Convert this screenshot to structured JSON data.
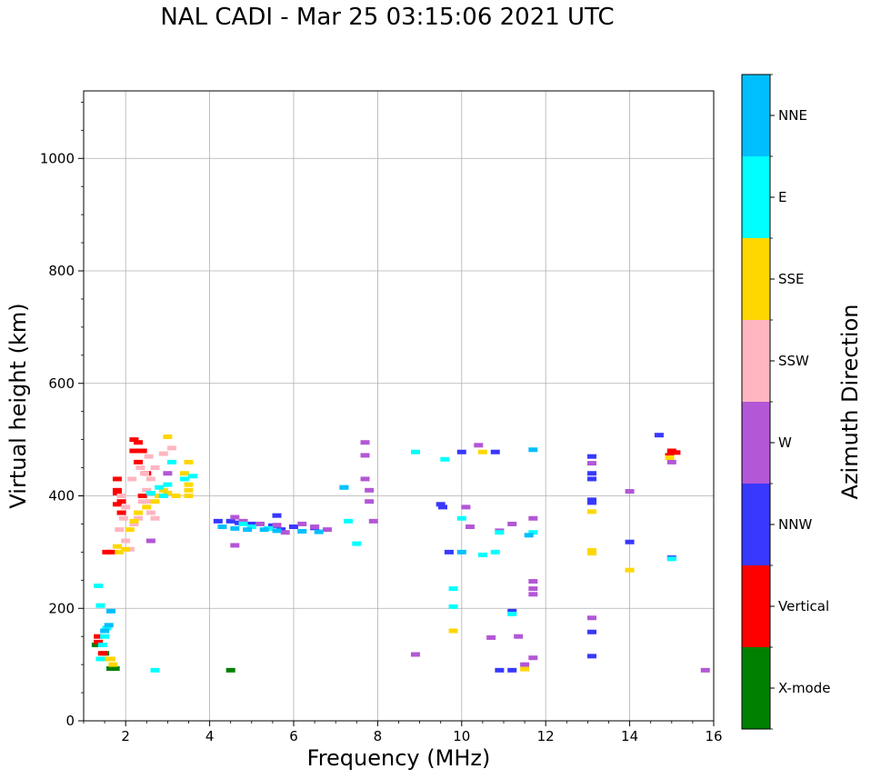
{
  "chart_data": {
    "type": "scatter",
    "title": "NAL CADI - Mar 25 03:15:06 2021 UTC",
    "xlabel": "Frequency (MHz)",
    "ylabel": "Virtual height (km)",
    "xlim": [
      1,
      16
    ],
    "ylim": [
      0,
      1120
    ],
    "xticks": [
      2,
      4,
      6,
      8,
      10,
      12,
      14,
      16
    ],
    "yticks": [
      0,
      200,
      400,
      600,
      800,
      1000
    ],
    "grid": true,
    "colorbar": {
      "label": "Azimuth Direction",
      "categories": [
        "X-mode",
        "Vertical",
        "NNW",
        "W",
        "SSW",
        "SSE",
        "E",
        "NNE"
      ],
      "colors": {
        "X-mode": "#008000",
        "Vertical": "#ff0000",
        "NNW": "#3838ff",
        "W": "#b357d6",
        "SSW": "#ffb6c1",
        "SSE": "#ffd700",
        "E": "#00ffff",
        "NNE": "#00bfff"
      }
    },
    "series": [
      {
        "name": "X-mode",
        "points": [
          [
            1.65,
            93
          ],
          [
            1.75,
            93
          ],
          [
            4.5,
            90
          ],
          [
            1.3,
            135
          ],
          [
            1.5,
            120
          ]
        ]
      },
      {
        "name": "Vertical",
        "points": [
          [
            1.35,
            140
          ],
          [
            1.35,
            150
          ],
          [
            1.45,
            120
          ],
          [
            1.55,
            300
          ],
          [
            1.65,
            300
          ],
          [
            1.8,
            430
          ],
          [
            1.8,
            410
          ],
          [
            1.8,
            405
          ],
          [
            1.8,
            385
          ],
          [
            1.9,
            390
          ],
          [
            1.9,
            370
          ],
          [
            2.2,
            500
          ],
          [
            2.2,
            480
          ],
          [
            2.3,
            495
          ],
          [
            2.3,
            460
          ],
          [
            2.4,
            480
          ],
          [
            2.5,
            440
          ],
          [
            2.4,
            400
          ],
          [
            15,
            480
          ],
          [
            15.1,
            477
          ],
          [
            14.95,
            472
          ]
        ]
      },
      {
        "name": "NNW",
        "points": [
          [
            4.2,
            355
          ],
          [
            4.5,
            355
          ],
          [
            4.7,
            352
          ],
          [
            5.0,
            350
          ],
          [
            5.5,
            347
          ],
          [
            6.0,
            345
          ],
          [
            6.5,
            343
          ],
          [
            5.7,
            340
          ],
          [
            5.6,
            365
          ],
          [
            9.5,
            385
          ],
          [
            9.55,
            380
          ],
          [
            9.7,
            300
          ],
          [
            10.0,
            478
          ],
          [
            10.8,
            478
          ],
          [
            11.2,
            195
          ],
          [
            10.9,
            90
          ],
          [
            11.2,
            90
          ],
          [
            13.1,
            470
          ],
          [
            13.1,
            440
          ],
          [
            13.1,
            430
          ],
          [
            13.1,
            393
          ],
          [
            13.1,
            388
          ],
          [
            13.1,
            158
          ],
          [
            13.1,
            115
          ],
          [
            14.0,
            318
          ],
          [
            14.7,
            508
          ],
          [
            15.0,
            290
          ]
        ]
      },
      {
        "name": "W",
        "points": [
          [
            4.6,
            362
          ],
          [
            4.8,
            355
          ],
          [
            5.2,
            350
          ],
          [
            5.6,
            348
          ],
          [
            6.2,
            350
          ],
          [
            6.5,
            345
          ],
          [
            6.8,
            340
          ],
          [
            5.8,
            335
          ],
          [
            4.6,
            312
          ],
          [
            7.7,
            495
          ],
          [
            7.7,
            472
          ],
          [
            7.7,
            430
          ],
          [
            7.8,
            410
          ],
          [
            7.8,
            390
          ],
          [
            7.9,
            355
          ],
          [
            8.9,
            118
          ],
          [
            10.1,
            380
          ],
          [
            10.2,
            345
          ],
          [
            10.4,
            490
          ],
          [
            10.7,
            148
          ],
          [
            10.9,
            338
          ],
          [
            11.2,
            350
          ],
          [
            11.35,
            150
          ],
          [
            11.7,
            360
          ],
          [
            11.7,
            248
          ],
          [
            11.7,
            235
          ],
          [
            11.7,
            225
          ],
          [
            11.7,
            112
          ],
          [
            11.5,
            100
          ],
          [
            13.1,
            458
          ],
          [
            13.1,
            183
          ],
          [
            14.0,
            408
          ],
          [
            15.0,
            460
          ],
          [
            15.8,
            90
          ],
          [
            2.6,
            320
          ],
          [
            3.0,
            440
          ]
        ]
      },
      {
        "name": "SSW",
        "points": [
          [
            1.85,
            340
          ],
          [
            1.95,
            360
          ],
          [
            2.0,
            380
          ],
          [
            2.2,
            350
          ],
          [
            2.3,
            360
          ],
          [
            2.4,
            390
          ],
          [
            2.5,
            410
          ],
          [
            2.6,
            430
          ],
          [
            2.7,
            450
          ],
          [
            2.5,
            390
          ],
          [
            2.6,
            370
          ],
          [
            2.7,
            360
          ],
          [
            2.9,
            475
          ],
          [
            3.1,
            485
          ],
          [
            1.9,
            400
          ],
          [
            2.0,
            320
          ],
          [
            2.1,
            305
          ],
          [
            2.15,
            430
          ],
          [
            2.35,
            450
          ],
          [
            2.45,
            440
          ],
          [
            2.55,
            470
          ]
        ]
      },
      {
        "name": "SSE",
        "points": [
          [
            1.5,
            110
          ],
          [
            1.65,
            110
          ],
          [
            1.7,
            100
          ],
          [
            1.8,
            310
          ],
          [
            1.85,
            300
          ],
          [
            2.0,
            305
          ],
          [
            2.1,
            340
          ],
          [
            2.2,
            355
          ],
          [
            2.3,
            370
          ],
          [
            2.5,
            380
          ],
          [
            2.7,
            390
          ],
          [
            2.8,
            400
          ],
          [
            2.9,
            410
          ],
          [
            3.0,
            405
          ],
          [
            3.2,
            400
          ],
          [
            3.5,
            410
          ],
          [
            3.5,
            420
          ],
          [
            3.5,
            400
          ],
          [
            3.5,
            460
          ],
          [
            3.0,
            505
          ],
          [
            3.4,
            440
          ],
          [
            9.8,
            160
          ],
          [
            10.5,
            478
          ],
          [
            11.5,
            92
          ],
          [
            13.1,
            303
          ],
          [
            13.1,
            298
          ],
          [
            13.1,
            372
          ],
          [
            14.0,
            268
          ],
          [
            14.95,
            468
          ]
        ]
      },
      {
        "name": "E",
        "points": [
          [
            1.4,
            110
          ],
          [
            1.45,
            135
          ],
          [
            1.5,
            150
          ],
          [
            1.55,
            165
          ],
          [
            1.35,
            240
          ],
          [
            1.4,
            205
          ],
          [
            3.6,
            435
          ],
          [
            3.4,
            430
          ],
          [
            3.0,
            420
          ],
          [
            2.8,
            415
          ],
          [
            2.6,
            405
          ],
          [
            2.9,
            400
          ],
          [
            3.1,
            460
          ],
          [
            4.8,
            350
          ],
          [
            5.0,
            345
          ],
          [
            5.4,
            342
          ],
          [
            7.2,
            415
          ],
          [
            7.3,
            355
          ],
          [
            7.5,
            315
          ],
          [
            8.9,
            478
          ],
          [
            9.6,
            465
          ],
          [
            9.8,
            235
          ],
          [
            9.8,
            203
          ],
          [
            10.0,
            360
          ],
          [
            10.5,
            295
          ],
          [
            10.8,
            300
          ],
          [
            10.9,
            335
          ],
          [
            11.2,
            190
          ],
          [
            11.7,
            335
          ],
          [
            15.0,
            288
          ],
          [
            2.7,
            90
          ]
        ]
      },
      {
        "name": "NNE",
        "points": [
          [
            1.5,
            160
          ],
          [
            1.6,
            170
          ],
          [
            1.65,
            195
          ],
          [
            4.3,
            345
          ],
          [
            4.6,
            342
          ],
          [
            4.9,
            340
          ],
          [
            5.3,
            340
          ],
          [
            5.6,
            338
          ],
          [
            6.2,
            337
          ],
          [
            6.6,
            336
          ],
          [
            7.2,
            415
          ],
          [
            11.7,
            482
          ],
          [
            10.0,
            300
          ],
          [
            11.6,
            330
          ]
        ]
      }
    ]
  }
}
